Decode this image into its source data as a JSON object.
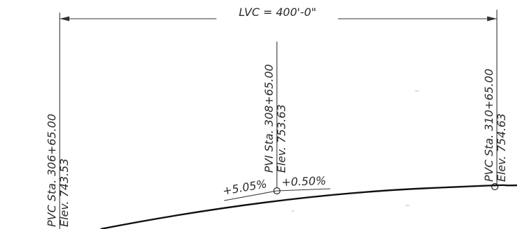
{
  "dimension": {
    "label": "LVC = 400'-0\""
  },
  "pvc": {
    "station": "PVC Sta. 306+65.00",
    "elevation": "Elev. 743.53"
  },
  "pvi": {
    "station": "PVI Sta. 308+65.00",
    "elevation": "Elev. 753.63",
    "grade_in": "+5.05%",
    "grade_out": "+0.50%"
  },
  "pvt": {
    "station": "PVC Sta. 310+65.00",
    "elevation": "Elev. 754.63"
  },
  "colors": {
    "linework": "#333333",
    "curve": "#111111",
    "background": "#ffffff"
  }
}
